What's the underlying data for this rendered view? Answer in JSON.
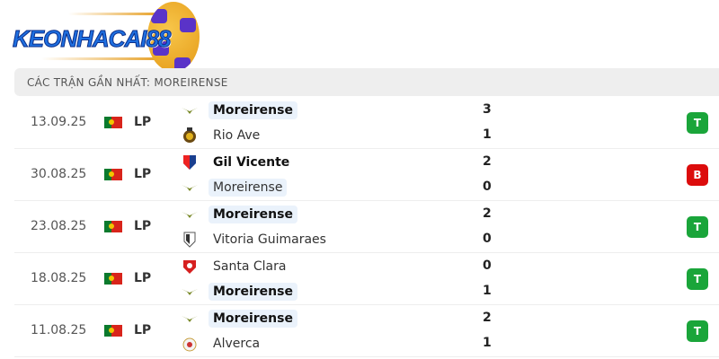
{
  "logo": {
    "text": "KEONHACAI88"
  },
  "header": {
    "title": "CÁC TRẬN GẦN NHẤT: MOREIRENSE"
  },
  "colors": {
    "win": "#1aa53a",
    "loss": "#dc0c0c",
    "highlight": "#eaf2fb"
  },
  "matches": [
    {
      "date": "13.09.25",
      "league": "LP",
      "home": {
        "name": "Moreirense",
        "icon": "moreirense-crest-icon",
        "score": "3",
        "bold": true,
        "hl": true
      },
      "away": {
        "name": "Rio Ave",
        "icon": "rio-ave-crest-icon",
        "score": "1",
        "bold": false,
        "hl": false
      },
      "result": "T"
    },
    {
      "date": "30.08.25",
      "league": "LP",
      "home": {
        "name": "Gil Vicente",
        "icon": "gil-vicente-crest-icon",
        "score": "2",
        "bold": true,
        "hl": false
      },
      "away": {
        "name": "Moreirense",
        "icon": "moreirense-crest-icon",
        "score": "0",
        "bold": false,
        "hl": true
      },
      "result": "B"
    },
    {
      "date": "23.08.25",
      "league": "LP",
      "home": {
        "name": "Moreirense",
        "icon": "moreirense-crest-icon",
        "score": "2",
        "bold": true,
        "hl": true
      },
      "away": {
        "name": "Vitoria Guimaraes",
        "icon": "vitoria-guimaraes-crest-icon",
        "score": "0",
        "bold": false,
        "hl": false
      },
      "result": "T"
    },
    {
      "date": "18.08.25",
      "league": "LP",
      "home": {
        "name": "Santa Clara",
        "icon": "santa-clara-crest-icon",
        "score": "0",
        "bold": false,
        "hl": false
      },
      "away": {
        "name": "Moreirense",
        "icon": "moreirense-crest-icon",
        "score": "1",
        "bold": true,
        "hl": true
      },
      "result": "T"
    },
    {
      "date": "11.08.25",
      "league": "LP",
      "home": {
        "name": "Moreirense",
        "icon": "moreirense-crest-icon",
        "score": "2",
        "bold": true,
        "hl": true
      },
      "away": {
        "name": "Alverca",
        "icon": "alverca-crest-icon",
        "score": "1",
        "bold": false,
        "hl": false
      },
      "result": "T"
    }
  ]
}
